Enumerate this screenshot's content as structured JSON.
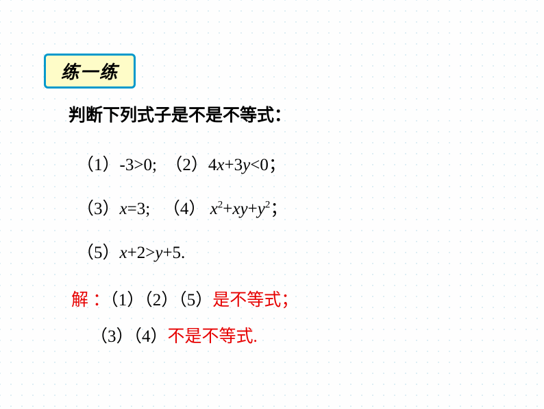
{
  "colors": {
    "background": "#fefefe",
    "dot_pattern": "#d4e8f0",
    "box_fill": "#fefcc8",
    "box_border": "#0099cc",
    "text_black": "#000000",
    "text_red": "#e60000"
  },
  "typography": {
    "header_fontsize": 26,
    "body_fontsize": 25,
    "sup_fontsize": 15,
    "header_family": "SimHei",
    "body_family": "SimSun",
    "math_family": "Times New Roman"
  },
  "header": {
    "label": "练一练"
  },
  "prompt": "判断下列式子是不是不等式：",
  "items": {
    "line1": {
      "p1_num": "（1）",
      "p1_expr": "-3>0;",
      "p2_num": "（2）",
      "p2_pre": "4",
      "p2_v1": "x",
      "p2_mid": "+3",
      "p2_v2": "y",
      "p2_post": "<0；"
    },
    "line2": {
      "p3_num": "（3）",
      "p3_v": "x",
      "p3_post": "=3;",
      "p4_num": "（4）",
      "p4_v1": "x",
      "p4_s1": "2",
      "p4_mid1": "+",
      "p4_v2": "x",
      "p4_v3": "y",
      "p4_mid2": "+",
      "p4_v4": "y",
      "p4_s2": "2",
      "p4_post": "；"
    },
    "line3": {
      "p5_num": "（5）",
      "p5_v1": "x",
      "p5_mid": "+2>",
      "p5_v2": "y",
      "p5_post": "+5."
    }
  },
  "solution": {
    "line1": {
      "a": "解 ：",
      "b": "（1）（2）（5）",
      "c": "是不等式；"
    },
    "line2": {
      "a": "（3）（4）",
      "b": "不是不等式."
    }
  }
}
